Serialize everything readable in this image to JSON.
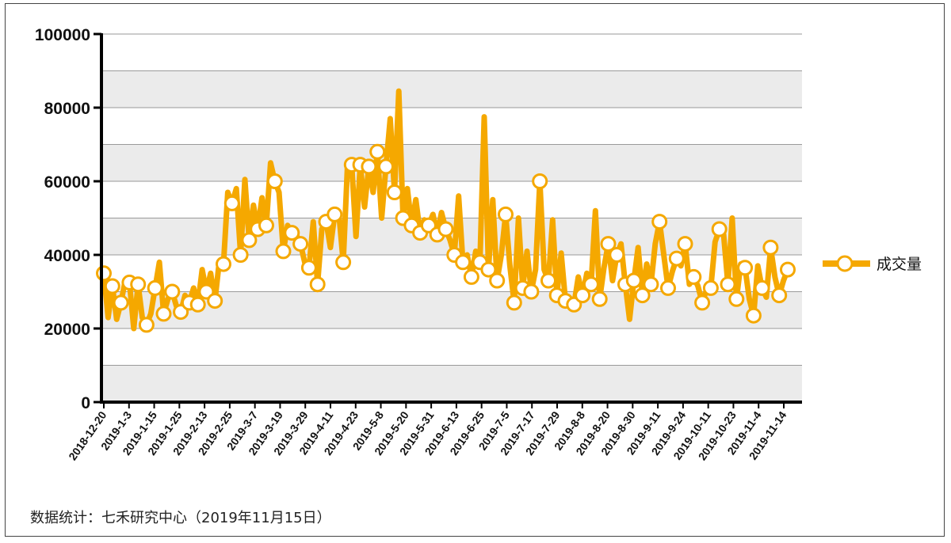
{
  "source_note": "数据统计：七禾研究中心（2019年11月15日）",
  "colors": {
    "series": "#f5a800",
    "marker_fill": "#ffffff",
    "band": "#ebebeb",
    "axis": "#000000"
  },
  "chart_data": {
    "type": "line",
    "title": "",
    "xlabel": "",
    "ylabel": "",
    "ylim": [
      0,
      100000
    ],
    "yticks": [
      0,
      20000,
      40000,
      60000,
      80000,
      100000
    ],
    "ytick_labels": [
      "0",
      "20000",
      "40000",
      "60000",
      "80000",
      "100000"
    ],
    "grid": true,
    "legend_position": "right",
    "x_tick_labels": [
      "2018-12-20",
      "2019-1-3",
      "2019-1-15",
      "2019-1-25",
      "2019-2-13",
      "2019-2-25",
      "2019-3-7",
      "2019-3-19",
      "2019-3-29",
      "2019-4-11",
      "2019-4-23",
      "2019-5-8",
      "2019-5-20",
      "2019-5-31",
      "2019-6-13",
      "2019-6-25",
      "2019-7-5",
      "2019-7-17",
      "2019-7-29",
      "2019-8-8",
      "2019-8-20",
      "2019-8-30",
      "2019-9-11",
      "2019-9-24",
      "2019-10-11",
      "2019-10-23",
      "2019-11-4",
      "2019-11-14"
    ],
    "marker_every": 2,
    "series": [
      {
        "name": "成交量",
        "values": [
          35000,
          23000,
          31500,
          22500,
          27000,
          33000,
          32500,
          20000,
          32000,
          23000,
          21000,
          24000,
          31000,
          38000,
          24000,
          28000,
          30000,
          26000,
          24500,
          29000,
          27000,
          31000,
          26500,
          36000,
          30000,
          35000,
          27500,
          38000,
          37500,
          57000,
          54000,
          58000,
          40000,
          60500,
          44000,
          53500,
          47000,
          55500,
          48000,
          65000,
          60000,
          57000,
          41000,
          48000,
          46000,
          45500,
          43000,
          38000,
          36500,
          49000,
          32000,
          47000,
          49000,
          42000,
          51000,
          51000,
          38000,
          64000,
          64500,
          45000,
          64500,
          53000,
          64000,
          57000,
          68000,
          50000,
          64000,
          77000,
          57000,
          84500,
          50000,
          58000,
          48000,
          55000,
          46000,
          49500,
          48000,
          51000,
          45500,
          51500,
          47000,
          44000,
          40000,
          56000,
          38000,
          40000,
          34000,
          41000,
          38000,
          77500,
          36000,
          55000,
          33000,
          40000,
          51000,
          37000,
          27000,
          50000,
          31000,
          41000,
          30000,
          36000,
          60000,
          36000,
          33000,
          49500,
          29000,
          40500,
          27500,
          27000,
          26500,
          34000,
          29000,
          35000,
          32000,
          52000,
          28000,
          36500,
          43000,
          33000,
          40000,
          43000,
          32000,
          22500,
          33000,
          42000,
          29000,
          37500,
          32000,
          43000,
          49000,
          40000,
          31000,
          35500,
          39000,
          37000,
          43000,
          32000,
          34000,
          31500,
          27000,
          30500,
          31000,
          43500,
          47000,
          45500,
          32000,
          50000,
          28000,
          37500,
          36500,
          28000,
          23500,
          37000,
          31000,
          28500,
          42000,
          34000,
          29000,
          33000,
          36000
        ]
      }
    ]
  }
}
